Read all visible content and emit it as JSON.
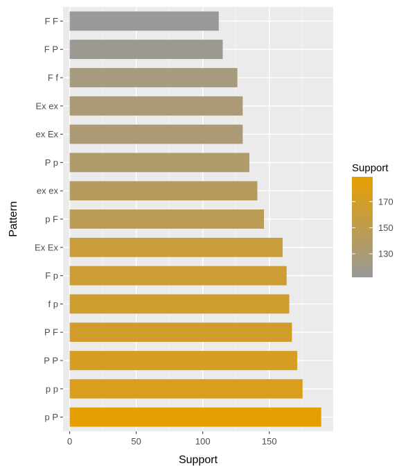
{
  "chart_data": {
    "type": "bar",
    "orientation": "horizontal",
    "xlabel": "Support",
    "ylabel": "Pattern",
    "xlim": [
      -5,
      198
    ],
    "x_ticks": [
      0,
      50,
      100,
      150
    ],
    "grid": true,
    "categories": [
      "F F",
      "F P",
      "F f",
      "Ex ex",
      "ex Ex",
      "P p",
      "ex ex",
      "p F",
      "Ex Ex",
      "F p",
      "f p",
      "P F",
      "P P",
      "p p",
      "p P"
    ],
    "values": [
      112,
      115,
      126,
      130,
      130,
      135,
      141,
      146,
      160,
      163,
      165,
      167,
      171,
      175,
      189
    ],
    "legend": {
      "title": "Support",
      "placement": "right",
      "ticks": [
        130,
        150,
        170
      ],
      "range": [
        112,
        189
      ],
      "color_low": "#999999",
      "color_high": "#E69F00"
    }
  }
}
